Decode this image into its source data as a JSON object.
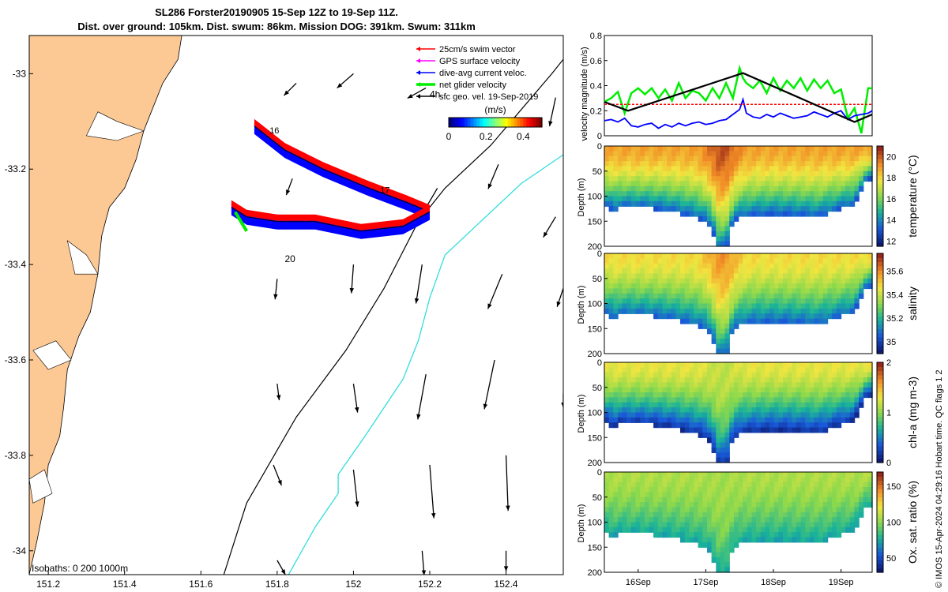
{
  "title": {
    "line1": "SL286 Forster20190905 15-Sep 12Z to 19-Sep 11Z.",
    "line2": "Dist. over ground: 105km. Dist. swum: 86km. Mission DOG: 391km. Swum: 311km"
  },
  "credit": "© IMOS 15-Apr-2024 04:29:16 Hobart time. QC flags 1  2",
  "colors": {
    "land": "#fcc995",
    "swim_vector": "#ff0000",
    "gps_velocity": "#ff00ff",
    "dive_avg": "#0000ff",
    "net_glider": "#00ee00",
    "sfc_geo": "#000000",
    "isobath_200": "#33dddd",
    "isobath_1000": "#000000"
  },
  "chart_data": [
    {
      "type": "scatter",
      "name": "map",
      "xlim": [
        151.15,
        152.55
      ],
      "ylim": [
        -34.05,
        -32.92
      ],
      "xticks": [
        151.2,
        151.4,
        151.6,
        151.8,
        152,
        152.2,
        152.4
      ],
      "xtick_labels": [
        "151.2",
        "151.4",
        "151.6",
        "151.8",
        "152",
        "152.2",
        "152.4"
      ],
      "yticks": [
        -33,
        -33.2,
        -33.4,
        -33.6,
        -33.8,
        -34
      ],
      "ytick_labels": [
        "-33",
        "-33.2",
        "-33.4",
        "-33.6",
        "-33.8",
        "-34"
      ],
      "legend": {
        "placement": "top-right",
        "entries": [
          "25cm/s swim vector",
          "GPS surface velocity",
          "dive-avg current veloc.",
          "net glider velocity",
          "sfc geo. vel. 19-Sep-2019"
        ]
      },
      "velocity_colorbar": {
        "label": "(m/s)",
        "ticks": [
          "0",
          "0.2",
          "0.4"
        ],
        "range": [
          0,
          0.5
        ]
      },
      "annotations": [
        "4h",
        "16",
        "17",
        "20",
        "Isobaths: 0   200  1000m"
      ],
      "track_leg1": [
        [
          151.74,
          -33.11
        ],
        [
          151.82,
          -33.16
        ],
        [
          151.92,
          -33.2
        ],
        [
          152.04,
          -33.24
        ],
        [
          152.14,
          -33.27
        ],
        [
          152.2,
          -33.29
        ]
      ],
      "track_leg2": [
        [
          152.2,
          -33.29
        ],
        [
          152.13,
          -33.32
        ],
        [
          152.02,
          -33.33
        ],
        [
          151.9,
          -33.31
        ],
        [
          151.8,
          -33.31
        ],
        [
          151.72,
          -33.3
        ],
        [
          151.68,
          -33.28
        ]
      ],
      "isobath_1000m": [
        [
          151.66,
          -34.05
        ],
        [
          151.72,
          -33.9
        ],
        [
          151.85,
          -33.72
        ],
        [
          151.98,
          -33.58
        ],
        [
          152.08,
          -33.45
        ],
        [
          152.17,
          -33.31
        ],
        [
          152.24,
          -33.24
        ],
        [
          152.36,
          -33.15
        ],
        [
          152.52,
          -33.0
        ],
        [
          152.55,
          -32.97
        ]
      ],
      "isobath_200m": [
        [
          151.83,
          -34.05
        ],
        [
          151.9,
          -33.95
        ],
        [
          151.96,
          -33.88
        ],
        [
          151.96,
          -33.84
        ],
        [
          152.03,
          -33.76
        ],
        [
          152.13,
          -33.64
        ],
        [
          152.17,
          -33.56
        ],
        [
          152.2,
          -33.47
        ],
        [
          152.24,
          -33.38
        ],
        [
          152.32,
          -33.32
        ],
        [
          152.44,
          -33.23
        ],
        [
          152.55,
          -33.17
        ]
      ],
      "current_arrows": [
        {
          "lon": 151.85,
          "lat": -33.02,
          "u": -0.06,
          "v": -0.06
        },
        {
          "lon": 152.0,
          "lat": -33.0,
          "u": -0.08,
          "v": -0.07
        },
        {
          "lon": 152.19,
          "lat": -33.03,
          "u": -0.09,
          "v": -0.05
        },
        {
          "lon": 152.53,
          "lat": -33.05,
          "u": -0.03,
          "v": -0.14
        },
        {
          "lon": 151.84,
          "lat": -33.22,
          "u": -0.03,
          "v": -0.08
        },
        {
          "lon": 152.22,
          "lat": -33.24,
          "u": -0.1,
          "v": -0.17
        },
        {
          "lon": 152.38,
          "lat": -33.19,
          "u": -0.05,
          "v": -0.12
        },
        {
          "lon": 152.53,
          "lat": -33.3,
          "u": -0.06,
          "v": -0.1
        },
        {
          "lon": 151.8,
          "lat": -33.43,
          "u": -0.01,
          "v": -0.1
        },
        {
          "lon": 152.0,
          "lat": -33.4,
          "u": -0.01,
          "v": -0.14
        },
        {
          "lon": 152.18,
          "lat": -33.4,
          "u": -0.03,
          "v": -0.19
        },
        {
          "lon": 152.39,
          "lat": -33.42,
          "u": -0.07,
          "v": -0.17
        },
        {
          "lon": 152.55,
          "lat": -33.45,
          "u": -0.03,
          "v": -0.09
        },
        {
          "lon": 151.8,
          "lat": -33.65,
          "u": 0.01,
          "v": -0.08
        },
        {
          "lon": 152.0,
          "lat": -33.65,
          "u": 0.02,
          "v": -0.14
        },
        {
          "lon": 152.19,
          "lat": -33.63,
          "u": -0.04,
          "v": -0.22
        },
        {
          "lon": 152.37,
          "lat": -33.6,
          "u": -0.05,
          "v": -0.24
        },
        {
          "lon": 152.55,
          "lat": -33.67,
          "u": 0.0,
          "v": -0.07
        },
        {
          "lon": 151.79,
          "lat": -33.82,
          "u": 0.04,
          "v": -0.1
        },
        {
          "lon": 152.0,
          "lat": -33.83,
          "u": 0.02,
          "v": -0.18
        },
        {
          "lon": 152.2,
          "lat": -33.82,
          "u": 0.02,
          "v": -0.26
        },
        {
          "lon": 152.4,
          "lat": -33.8,
          "u": 0.01,
          "v": -0.27
        },
        {
          "lon": 151.8,
          "lat": -34.02,
          "u": 0.04,
          "v": -0.07
        },
        {
          "lon": 152.18,
          "lat": -34.0,
          "u": 0.01,
          "v": -0.12
        },
        {
          "lon": 152.4,
          "lat": -34.0,
          "u": 0.0,
          "v": -0.1
        }
      ]
    },
    {
      "type": "line",
      "name": "velocity",
      "ylabel": "velocity magnitude (m/s)",
      "ylim": [
        0,
        0.8
      ],
      "yticks": [
        0,
        0.2,
        0.4,
        0.6,
        0.8
      ],
      "ytick_labels": [
        "0",
        "0.2",
        "0.4",
        "0.6",
        "0.8"
      ],
      "xlim": [
        15.5,
        19.46
      ],
      "series": [
        {
          "style": "net-glider",
          "x": [
            15.5,
            15.6,
            15.7,
            15.8,
            15.9,
            16.0,
            16.1,
            16.2,
            16.3,
            16.4,
            16.5,
            16.6,
            16.7,
            16.8,
            16.9,
            17.0,
            17.1,
            17.2,
            17.3,
            17.4,
            17.5,
            17.55,
            17.6,
            17.7,
            17.8,
            17.9,
            18.0,
            18.1,
            18.2,
            18.3,
            18.4,
            18.5,
            18.6,
            18.7,
            18.8,
            18.9,
            19.0,
            19.1,
            19.2,
            19.3,
            19.4,
            19.46
          ],
          "y": [
            0.27,
            0.3,
            0.35,
            0.18,
            0.34,
            0.38,
            0.33,
            0.38,
            0.3,
            0.37,
            0.28,
            0.42,
            0.3,
            0.36,
            0.34,
            0.28,
            0.38,
            0.3,
            0.42,
            0.3,
            0.54,
            0.46,
            0.42,
            0.38,
            0.44,
            0.34,
            0.46,
            0.36,
            0.44,
            0.38,
            0.46,
            0.36,
            0.45,
            0.38,
            0.44,
            0.34,
            0.37,
            0.14,
            0.22,
            0.02,
            0.38,
            0.38
          ]
        },
        {
          "style": "dive-avg",
          "x": [
            15.5,
            15.6,
            15.7,
            15.8,
            15.9,
            16.0,
            16.1,
            16.2,
            16.3,
            16.4,
            16.5,
            16.6,
            16.7,
            16.8,
            16.9,
            17.0,
            17.1,
            17.2,
            17.3,
            17.4,
            17.5,
            17.55,
            17.6,
            17.7,
            17.8,
            17.9,
            18.0,
            18.1,
            18.2,
            18.3,
            18.4,
            18.5,
            18.6,
            18.7,
            18.8,
            18.9,
            19.0,
            19.1,
            19.2,
            19.3,
            19.4,
            19.46
          ],
          "y": [
            0.12,
            0.13,
            0.11,
            0.14,
            0.08,
            0.07,
            0.09,
            0.1,
            0.06,
            0.09,
            0.07,
            0.1,
            0.08,
            0.1,
            0.11,
            0.09,
            0.1,
            0.12,
            0.13,
            0.17,
            0.21,
            0.29,
            0.18,
            0.15,
            0.14,
            0.17,
            0.15,
            0.18,
            0.16,
            0.14,
            0.15,
            0.16,
            0.19,
            0.17,
            0.15,
            0.18,
            0.2,
            0.13,
            0.16,
            0.17,
            0.18,
            0.2
          ]
        },
        {
          "style": "swim",
          "x": [
            15.5,
            19.46
          ],
          "y": [
            0.25,
            0.25
          ]
        },
        {
          "style": "sfc-geo",
          "x": [
            15.5,
            15.85,
            17.55,
            19.2,
            19.46
          ],
          "y": [
            0.27,
            0.2,
            0.5,
            0.11,
            0.17
          ]
        }
      ]
    },
    {
      "type": "heatmap",
      "name": "temperature",
      "ylabel": "Depth (m)",
      "colorbar_label": "temperature (°C)",
      "crange": [
        11.5,
        21
      ],
      "colorbar_ticks": [
        "12",
        "14",
        "16",
        "18",
        "20"
      ],
      "colorbar_tick_values": [
        12,
        14,
        16,
        18,
        20
      ],
      "yticks": [
        "0",
        "50",
        "100",
        "150",
        "200"
      ],
      "surface_value": 19,
      "deep_value": 13,
      "warm_core": 21
    },
    {
      "type": "heatmap",
      "name": "salinity",
      "ylabel": "Depth (m)",
      "colorbar_label": "salinity",
      "crange": [
        34.9,
        35.75
      ],
      "colorbar_ticks": [
        "35",
        "35.2",
        "35.4",
        "35.6"
      ],
      "colorbar_tick_values": [
        35,
        35.2,
        35.4,
        35.6
      ],
      "yticks": [
        "0",
        "50",
        "100",
        "150",
        "200"
      ],
      "surface_value": 35.48,
      "deep_value": 35.05,
      "warm_core": 35.65
    },
    {
      "type": "heatmap",
      "name": "chlorophyll",
      "ylabel": "Depth (m)",
      "colorbar_label": "chl-a (mg m-3)",
      "crange": [
        0,
        2
      ],
      "colorbar_ticks": [
        "0",
        "1",
        "2"
      ],
      "colorbar_tick_values": [
        0,
        1,
        2
      ],
      "yticks": [
        "0",
        "50",
        "100",
        "150",
        "200"
      ],
      "surface_value": 1.3,
      "deep_value": 0.1,
      "warm_core": 1.1
    },
    {
      "type": "heatmap",
      "name": "oxygen",
      "ylabel": "Depth (m)",
      "colorbar_label": "Ox. sat. ratio (%)",
      "crange": [
        30,
        170
      ],
      "colorbar_ticks": [
        "50",
        "100",
        "150"
      ],
      "colorbar_tick_values": [
        50,
        100,
        150
      ],
      "yticks": [
        "0",
        "50",
        "100",
        "150",
        "200"
      ],
      "surface_value": 108,
      "deep_value": 72,
      "warm_core": 104
    },
    {
      "type": "table",
      "name": "time-axis",
      "xticks": [
        16,
        17,
        18,
        19
      ],
      "xtick_labels": [
        "16Sep",
        "17Sep",
        "18Sep",
        "19Sep"
      ]
    }
  ]
}
